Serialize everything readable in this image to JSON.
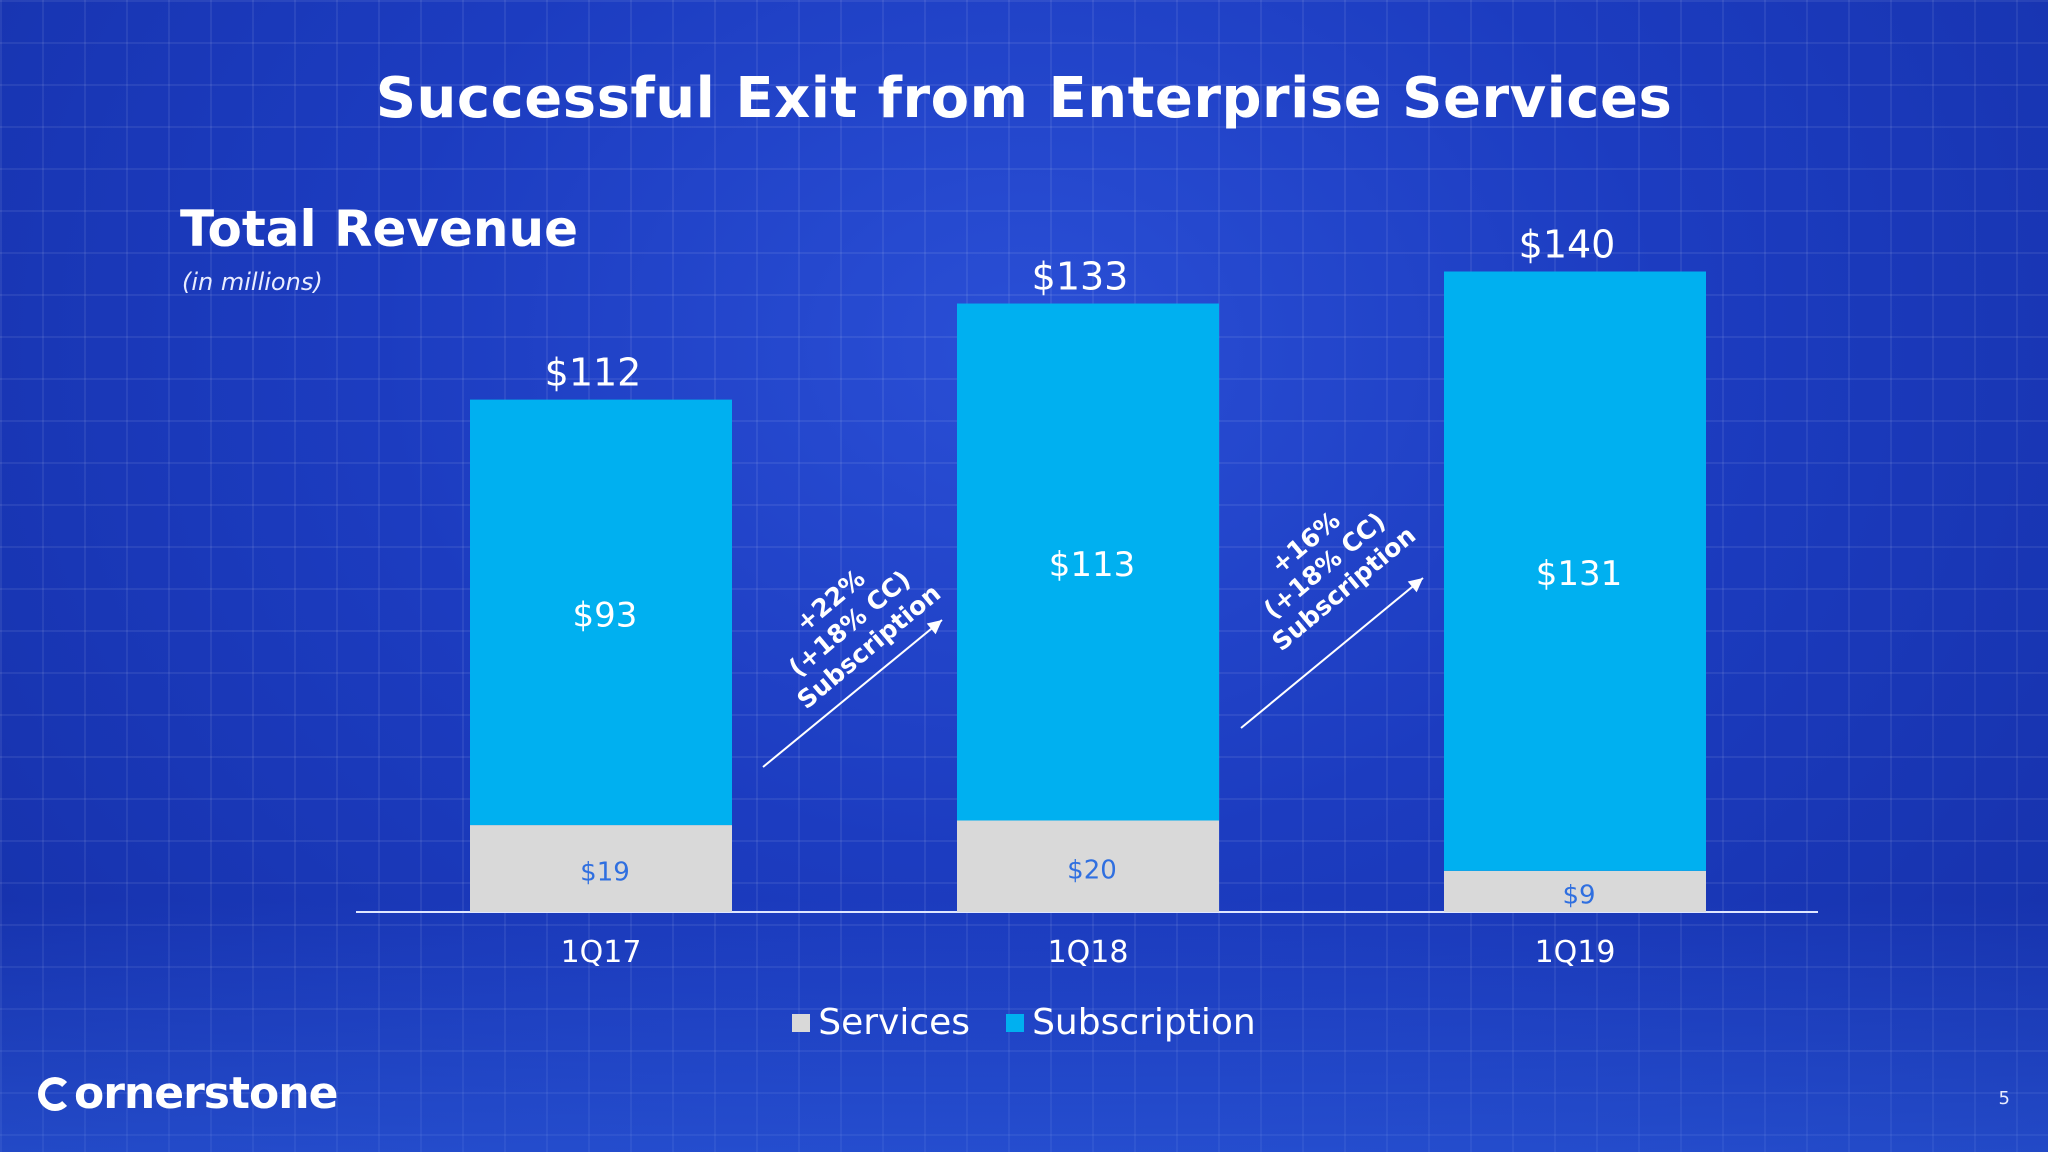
{
  "slide": {
    "title": "Successful Exit from Enterprise Services",
    "section_title": "Total Revenue",
    "section_subtitle": "(in millions)",
    "logo_text": "ornerstone",
    "page_number": "5"
  },
  "colors": {
    "services": "#d9d9d9",
    "subscription": "#00b0f0",
    "services_label": "#2f6fe0",
    "axis": "#dfe6ff"
  },
  "chart_data": {
    "type": "bar",
    "stacked": true,
    "categories": [
      "1Q17",
      "1Q18",
      "1Q19"
    ],
    "series": [
      {
        "name": "Services",
        "values": [
          19,
          20,
          9
        ],
        "labels": [
          "$19",
          "$20",
          "$9"
        ]
      },
      {
        "name": "Subscription",
        "values": [
          93,
          113,
          131
        ],
        "labels": [
          "$93",
          "$113",
          "$131"
        ]
      }
    ],
    "totals": [
      112,
      133,
      140
    ],
    "total_labels": [
      "$112",
      "$133",
      "$140"
    ],
    "ylim": [
      0,
      160
    ],
    "legend": "bottom-center",
    "annotations": [
      {
        "from": "1Q17",
        "to": "1Q18",
        "lines": [
          "+22%",
          "(+18% CC)",
          "Subscription"
        ]
      },
      {
        "from": "1Q18",
        "to": "1Q19",
        "lines": [
          "+16%",
          "(+18% CC)",
          "Subscription"
        ]
      }
    ]
  }
}
